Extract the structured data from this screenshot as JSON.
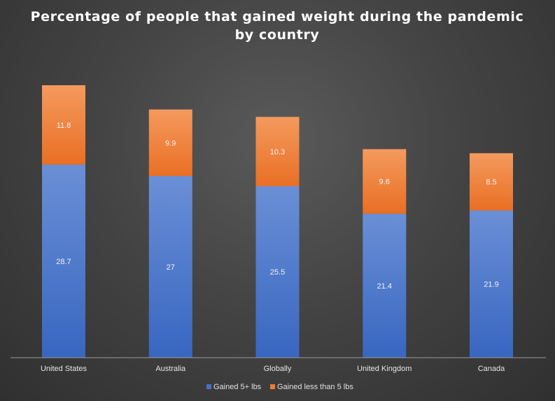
{
  "chart_data": {
    "type": "bar",
    "stacked": true,
    "title": "Percentage of people that gained weight during the pandemic by country",
    "title_lines": [
      "Percentage of people that gained weight during the pandemic",
      "by country"
    ],
    "categories": [
      "United States",
      "Australia",
      "Globally",
      "United Kingdom",
      "Canada"
    ],
    "series": [
      {
        "name": "Gained 5+ lbs",
        "values": [
          28.7,
          27,
          25.5,
          21.4,
          21.9
        ],
        "color": "#4472c4"
      },
      {
        "name": "Gained less than 5 lbs",
        "values": [
          11.8,
          9.9,
          10.3,
          9.6,
          8.5
        ],
        "color": "#ed7d31"
      }
    ],
    "ylim": [
      0,
      40.5
    ],
    "grid": false,
    "legend": "bottom",
    "xlabel": "",
    "ylabel": ""
  }
}
